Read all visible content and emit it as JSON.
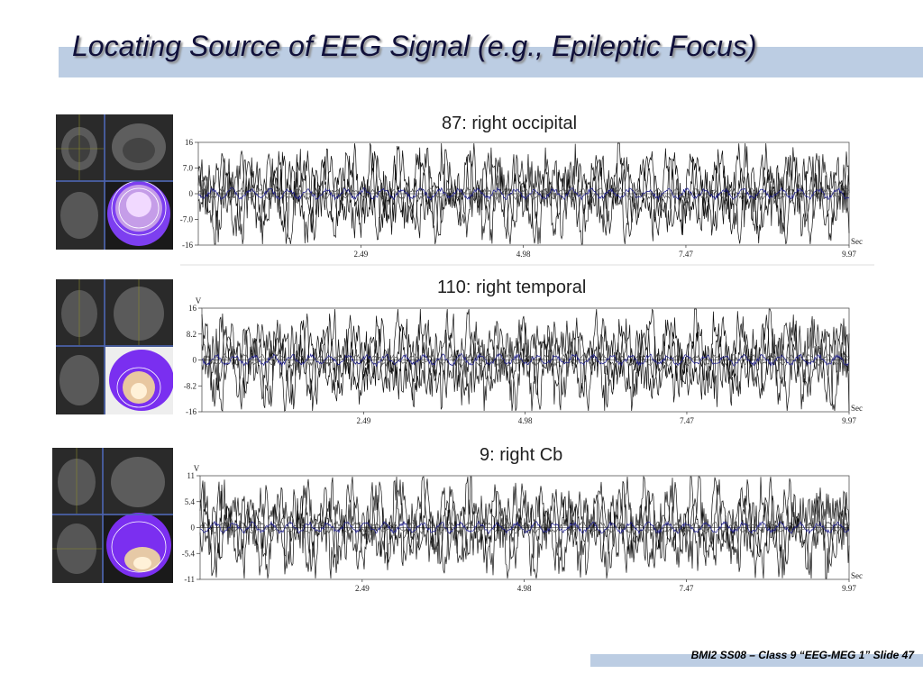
{
  "slide": {
    "title": "Locating Source of EEG Signal (e.g., Epileptic Focus)",
    "footer": "BMI2 SS08 – Class 9 “EEG-MEG 1” Slide 47"
  },
  "colors": {
    "title_bar": "#bccde3",
    "trace": "#111111",
    "overlay_trace": "#1a1a8c",
    "topomap": "#7b2ff0"
  },
  "panels": [
    {
      "title": "87: right occipital",
      "mri_icon": "mri-slices-topomap-occipital",
      "chart_data": {
        "type": "line",
        "x_unit": "Sec",
        "y_unit": "",
        "yticks": [
          "16",
          "7.0",
          "0",
          "-7.0",
          "-16"
        ],
        "xticks": [
          "2.49",
          "4.98",
          "7.47",
          "9.97"
        ],
        "xlim": [
          0,
          9.97
        ],
        "ylim": [
          -16,
          16
        ]
      }
    },
    {
      "title": "110: right temporal",
      "mri_icon": "mri-slices-topomap-temporal",
      "chart_data": {
        "type": "line",
        "x_unit": "Sec",
        "y_unit": "V",
        "yticks": [
          "16",
          "8.2",
          "0",
          "-8.2",
          "-16"
        ],
        "xticks": [
          "2.49",
          "4.98",
          "7.47",
          "9.97"
        ],
        "xlim": [
          0,
          9.97
        ],
        "ylim": [
          -16,
          16
        ]
      }
    },
    {
      "title": "9: right Cb",
      "mri_icon": "mri-slices-topomap-cerebellum",
      "chart_data": {
        "type": "line",
        "x_unit": "Sec",
        "y_unit": "V",
        "yticks": [
          "11",
          "5.4",
          "0",
          "-5.4",
          "-11"
        ],
        "xticks": [
          "2.49",
          "4.98",
          "7.47",
          "9.97"
        ],
        "xlim": [
          0,
          9.97
        ],
        "ylim": [
          -11,
          11
        ]
      }
    }
  ]
}
